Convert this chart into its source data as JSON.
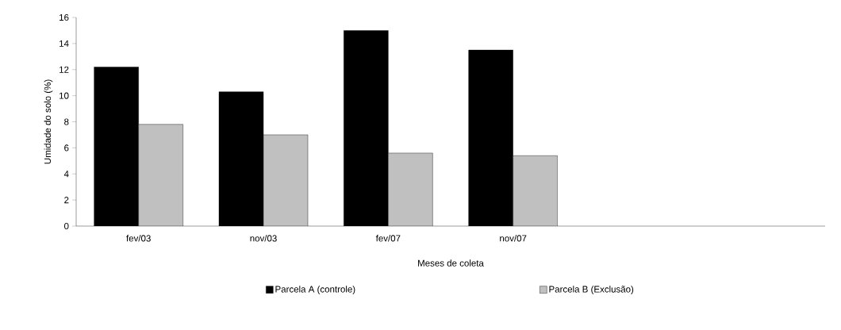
{
  "chart_data": {
    "type": "bar",
    "xlabel": "Meses de coleta",
    "ylabel": "Umidade do solo (%)",
    "categories": [
      "fev/03",
      "nov/03",
      "fev/07",
      "nov/07",
      null,
      null
    ],
    "series": [
      {
        "name": "Parcela A (controle)",
        "color": "#000000",
        "values": [
          12.2,
          10.3,
          15.0,
          13.5,
          null,
          null
        ]
      },
      {
        "name": "Parcela B (Exclusão)",
        "color": "#c0c0c0",
        "values": [
          7.8,
          7.0,
          5.6,
          5.4,
          null,
          null
        ]
      }
    ],
    "ylim": [
      0,
      16
    ],
    "yticks": [
      0,
      2,
      4,
      6,
      8,
      10,
      12,
      14,
      16
    ],
    "legend": "bottom"
  }
}
